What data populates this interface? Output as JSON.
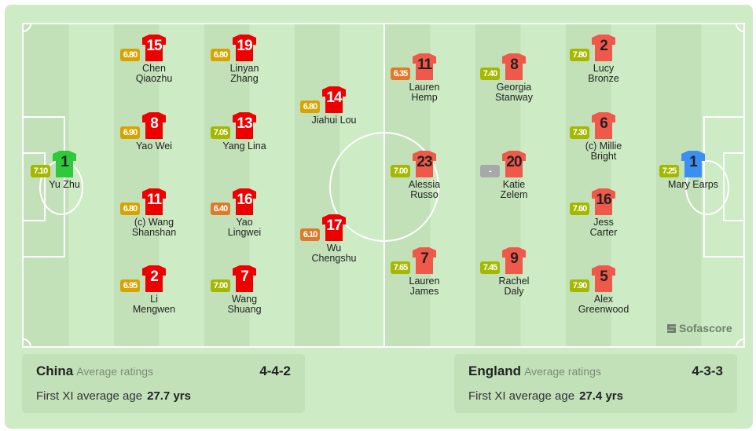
{
  "colors": {
    "china_shirt": "#ee0000",
    "china_gk": "#2ec93c",
    "england_shirt": "#f0584a",
    "england_gk": "#3b8ff0",
    "rating_high": "#a4b800",
    "rating_mid": "#d8a300",
    "rating_low": "#e07a2a",
    "rating_none": "#a8a8a8"
  },
  "home": {
    "team": "China",
    "avg_label": "Average ratings",
    "formation": "4-4-2",
    "age_label": "First XI average age",
    "age": "27.7 yrs",
    "players": [
      {
        "num": "1",
        "name": [
          "Yu Zhu"
        ],
        "rating": "7.10",
        "gk": true
      },
      {
        "num": "15",
        "name": [
          "Chen",
          "Qiaozhu"
        ],
        "rating": "6.80"
      },
      {
        "num": "8",
        "name": [
          "Yao Wei"
        ],
        "rating": "6.90"
      },
      {
        "num": "11",
        "name": [
          "(c) Wang",
          "Shanshan"
        ],
        "rating": "6.80"
      },
      {
        "num": "2",
        "name": [
          "Li",
          "Mengwen"
        ],
        "rating": "6.95"
      },
      {
        "num": "19",
        "name": [
          "Linyan",
          "Zhang"
        ],
        "rating": "6.80"
      },
      {
        "num": "13",
        "name": [
          "Yang Lina"
        ],
        "rating": "7.05"
      },
      {
        "num": "16",
        "name": [
          "Yao",
          "Lingwei"
        ],
        "rating": "6.40"
      },
      {
        "num": "7",
        "name": [
          "Wang",
          "Shuang"
        ],
        "rating": "7.00"
      },
      {
        "num": "14",
        "name": [
          "Jiahui Lou"
        ],
        "rating": "6.80"
      },
      {
        "num": "17",
        "name": [
          "Wu",
          "Chengshu"
        ],
        "rating": "6.10"
      }
    ]
  },
  "away": {
    "team": "England",
    "avg_label": "Average ratings",
    "formation": "4-3-3",
    "age_label": "First XI average age",
    "age": "27.4 yrs",
    "players": [
      {
        "num": "11",
        "name": [
          "Lauren",
          "Hemp"
        ],
        "rating": "6.35"
      },
      {
        "num": "23",
        "name": [
          "Alessia",
          "Russo"
        ],
        "rating": "7.00"
      },
      {
        "num": "7",
        "name": [
          "Lauren",
          "James"
        ],
        "rating": "7.65"
      },
      {
        "num": "8",
        "name": [
          "Georgia",
          "Stanway"
        ],
        "rating": "7.40"
      },
      {
        "num": "20",
        "name": [
          "Katie",
          "Zelem"
        ],
        "rating": "-"
      },
      {
        "num": "9",
        "name": [
          "Rachel",
          "Daly"
        ],
        "rating": "7.45"
      },
      {
        "num": "2",
        "name": [
          "Lucy",
          "Bronze"
        ],
        "rating": "7.80"
      },
      {
        "num": "6",
        "name": [
          "(c) Millie",
          "Bright"
        ],
        "rating": "7.30"
      },
      {
        "num": "16",
        "name": [
          "Jess",
          "Carter"
        ],
        "rating": "7.60"
      },
      {
        "num": "5",
        "name": [
          "Alex",
          "Greenwood"
        ],
        "rating": "7.90"
      },
      {
        "num": "1",
        "name": [
          "Mary Earps"
        ],
        "rating": "7.25",
        "gk": true
      }
    ]
  },
  "branding": "Sofascore"
}
